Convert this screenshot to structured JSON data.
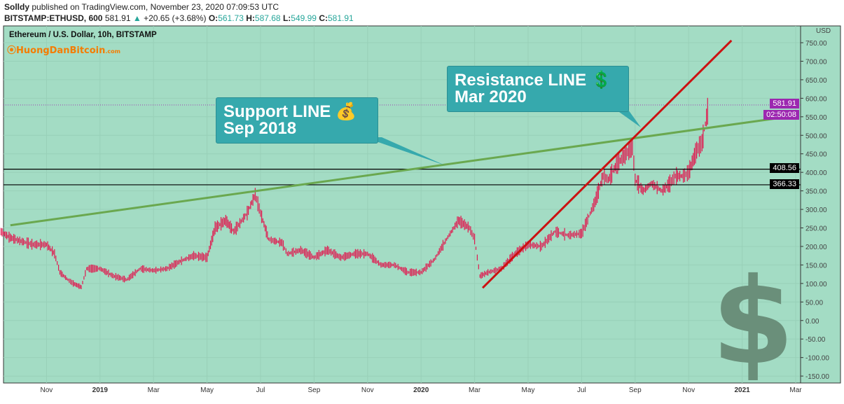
{
  "header": {
    "publisher": "Solldy",
    "published_text": "published on TradingView.com, November 23, 2020 07:09:53 UTC",
    "symbol": "BITSTAMP:ETHUSD, 600",
    "last": "581.91",
    "change": "+20.65 (+3.68%)",
    "o_label": "O:",
    "o": "561.73",
    "h_label": "H:",
    "h": "587.68",
    "l_label": "L:",
    "l": "549.99",
    "c_label": "C:",
    "c": "581.91"
  },
  "chart_title": "Ethereum / U.S. Dollar, 10h, BITSTAMP",
  "logo_text": "HuongDanBitcoin",
  "logo_suffix": ".com",
  "colors": {
    "bg": "#a3dcc4",
    "candle": "#e0194f",
    "support": "#6aa84f",
    "resistance": "#cc1111",
    "callout": "#36a9ad"
  },
  "callouts": {
    "support": [
      "Support LINE 💰",
      "Sep 2018"
    ],
    "resistance": [
      "Resistance LINE 💲",
      "Mar 2020"
    ]
  },
  "tags": {
    "price": "581.91",
    "countdown": "02:50:08",
    "h1": "408.56",
    "h2": "366.33"
  },
  "chart_data": {
    "type": "line",
    "currency": "USD",
    "ylim": [
      -150,
      750
    ],
    "yticks": [
      "750.00",
      "700.00",
      "650.00",
      "600.00",
      "550.00",
      "500.00",
      "450.00",
      "400.00",
      "350.00",
      "300.00",
      "250.00",
      "200.00",
      "150.00",
      "100.00",
      "50.00",
      "0.00",
      "-50.00",
      "-100.00",
      "-150.00"
    ],
    "xticks": [
      {
        "m": 2,
        "label": "Nov"
      },
      {
        "m": 4,
        "label": "2019"
      },
      {
        "m": 6,
        "label": "Mar"
      },
      {
        "m": 8,
        "label": "May"
      },
      {
        "m": 10,
        "label": "Jul"
      },
      {
        "m": 12,
        "label": "Sep"
      },
      {
        "m": 14,
        "label": "Nov"
      },
      {
        "m": 16,
        "label": "2020"
      },
      {
        "m": 18,
        "label": "Mar"
      },
      {
        "m": 20,
        "label": "May"
      },
      {
        "m": 22,
        "label": "Jul"
      },
      {
        "m": 24,
        "label": "Sep"
      },
      {
        "m": 26,
        "label": "Nov"
      },
      {
        "m": 28,
        "label": "2021"
      },
      {
        "m": 30,
        "label": "Mar"
      }
    ],
    "x_unit": "months since 2018-09-01",
    "series": [
      {
        "name": "ETHUSD",
        "points": [
          [
            0.3,
            240
          ],
          [
            0.6,
            225
          ],
          [
            1.0,
            215
          ],
          [
            1.5,
            205
          ],
          [
            2.0,
            205
          ],
          [
            2.3,
            180
          ],
          [
            2.5,
            130
          ],
          [
            2.8,
            110
          ],
          [
            3.0,
            100
          ],
          [
            3.3,
            90
          ],
          [
            3.5,
            140
          ],
          [
            4.0,
            140
          ],
          [
            4.5,
            120
          ],
          [
            5.0,
            110
          ],
          [
            5.5,
            140
          ],
          [
            6.0,
            135
          ],
          [
            6.5,
            140
          ],
          [
            7.0,
            160
          ],
          [
            7.5,
            175
          ],
          [
            8.0,
            170
          ],
          [
            8.3,
            250
          ],
          [
            8.7,
            270
          ],
          [
            9.0,
            240
          ],
          [
            9.5,
            290
          ],
          [
            9.8,
            340
          ],
          [
            10.0,
            290
          ],
          [
            10.3,
            220
          ],
          [
            10.5,
            215
          ],
          [
            10.8,
            210
          ],
          [
            11.0,
            180
          ],
          [
            11.5,
            190
          ],
          [
            12.0,
            170
          ],
          [
            12.5,
            190
          ],
          [
            13.0,
            170
          ],
          [
            13.5,
            180
          ],
          [
            14.0,
            180
          ],
          [
            14.5,
            150
          ],
          [
            15.0,
            150
          ],
          [
            15.5,
            130
          ],
          [
            16.0,
            130
          ],
          [
            16.5,
            165
          ],
          [
            17.0,
            225
          ],
          [
            17.4,
            270
          ],
          [
            17.8,
            250
          ],
          [
            18.0,
            220
          ],
          [
            18.2,
            120
          ],
          [
            18.5,
            130
          ],
          [
            19.0,
            140
          ],
          [
            19.5,
            180
          ],
          [
            20.0,
            205
          ],
          [
            20.5,
            200
          ],
          [
            21.0,
            240
          ],
          [
            21.5,
            230
          ],
          [
            22.0,
            235
          ],
          [
            22.5,
            320
          ],
          [
            22.8,
            390
          ],
          [
            23.0,
            380
          ],
          [
            23.3,
            420
          ],
          [
            23.9,
            470
          ],
          [
            24.0,
            380
          ],
          [
            24.3,
            350
          ],
          [
            24.6,
            370
          ],
          [
            25.0,
            350
          ],
          [
            25.3,
            370
          ],
          [
            25.5,
            390
          ],
          [
            25.8,
            390
          ],
          [
            26.0,
            400
          ],
          [
            26.3,
            460
          ],
          [
            26.5,
            480
          ],
          [
            26.75,
            582
          ]
        ]
      }
    ],
    "lines": [
      {
        "name": "Support LINE Sep 2018",
        "from": [
          0.65,
          257
        ],
        "to": [
          29.5,
          548
        ]
      },
      {
        "name": "Resistance LINE Mar 2020",
        "from": [
          18.3,
          88
        ],
        "to": [
          27.6,
          756
        ]
      }
    ],
    "hlines": [
      408.56,
      366.33
    ],
    "current_price": 581.91
  }
}
